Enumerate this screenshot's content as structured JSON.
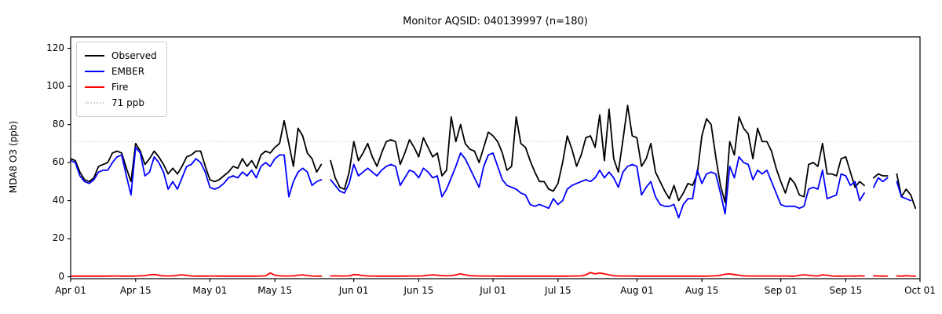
{
  "chart_data": {
    "type": "line",
    "title": "Monitor AQSID: 040139997 (n=180)",
    "xlabel": "",
    "ylabel": "MDA8 O3 (ppb)",
    "ylim": [
      -1,
      126
    ],
    "yticks": [
      0,
      20,
      40,
      60,
      80,
      100,
      120
    ],
    "xtick_labels": [
      "Apr 01",
      "Apr 15",
      "May 01",
      "May 15",
      "Jun 01",
      "Jun 15",
      "Jul 01",
      "Jul 15",
      "Aug 01",
      "Aug 15",
      "Sep 01",
      "Sep 15",
      "Oct 01"
    ],
    "xtick_day_index": [
      0,
      14,
      30,
      44,
      61,
      75,
      91,
      105,
      122,
      136,
      153,
      167,
      183
    ],
    "x_index_max": 183,
    "x_start_label": "Apr 01",
    "x_end_label": "Oct 01",
    "grid": false,
    "legend_position": "upper left",
    "threshold": {
      "label": "71 ppb",
      "value": 71,
      "color": "#d3d3d3",
      "style": "dotted"
    },
    "series": [
      {
        "name": "Observed",
        "color": "#000000",
        "values": [
          62,
          61,
          55,
          51,
          50,
          52,
          58,
          59,
          60,
          65,
          66,
          65,
          57,
          50,
          70,
          66,
          59,
          62,
          66,
          63,
          59,
          54,
          57,
          54,
          58,
          63,
          64,
          66,
          66,
          58,
          51,
          50,
          51,
          53,
          55,
          58,
          57,
          62,
          58,
          61,
          57,
          64,
          66,
          65,
          68,
          70,
          82,
          70,
          58,
          78,
          74,
          65,
          62,
          55,
          59,
          null,
          61,
          52,
          47,
          46,
          55,
          71,
          61,
          65,
          70,
          63,
          58,
          65,
          71,
          72,
          71,
          59,
          65,
          72,
          68,
          63,
          73,
          68,
          63,
          65,
          53,
          56,
          84,
          71,
          80,
          70,
          67,
          66,
          60,
          68,
          76,
          74,
          71,
          65,
          56,
          58,
          84,
          70,
          68,
          61,
          55,
          50,
          50,
          46,
          45,
          49,
          60,
          74,
          67,
          58,
          64,
          73,
          74,
          68,
          85,
          61,
          88,
          62,
          55,
          72,
          90,
          74,
          73,
          58,
          62,
          70,
          55,
          50,
          45,
          41,
          48,
          40,
          44,
          49,
          48,
          54,
          74,
          83,
          80,
          63,
          48,
          39,
          71,
          64,
          84,
          78,
          75,
          62,
          78,
          71,
          71,
          66,
          57,
          50,
          44,
          52,
          49,
          43,
          42,
          59,
          60,
          58,
          70,
          54,
          54,
          53,
          62,
          63,
          55,
          47,
          50,
          48,
          null,
          52,
          54,
          53,
          53,
          null,
          54,
          42,
          46,
          43,
          36
        ]
      },
      {
        "name": "EMBER",
        "color": "#0000ff",
        "values": [
          61,
          60,
          53,
          50,
          49,
          51,
          55,
          56,
          56,
          60,
          63,
          64,
          53,
          43,
          68,
          65,
          53,
          55,
          63,
          60,
          55,
          46,
          50,
          46,
          52,
          58,
          59,
          62,
          60,
          55,
          47,
          46,
          47,
          49,
          52,
          53,
          52,
          55,
          53,
          56,
          52,
          58,
          60,
          58,
          62,
          64,
          64,
          42,
          50,
          55,
          57,
          55,
          48,
          50,
          51,
          null,
          51,
          48,
          45,
          44,
          49,
          59,
          53,
          55,
          57,
          55,
          53,
          56,
          58,
          59,
          58,
          48,
          52,
          56,
          55,
          52,
          57,
          55,
          52,
          53,
          42,
          46,
          52,
          58,
          65,
          62,
          57,
          52,
          47,
          58,
          64,
          65,
          58,
          51,
          48,
          47,
          46,
          44,
          43,
          38,
          37,
          38,
          37,
          36,
          41,
          38,
          40,
          46,
          48,
          49,
          50,
          51,
          50,
          52,
          56,
          52,
          55,
          52,
          47,
          55,
          58,
          59,
          58,
          43,
          47,
          50,
          42,
          38,
          37,
          37,
          38,
          31,
          38,
          41,
          41,
          56,
          49,
          54,
          55,
          54,
          44,
          33,
          58,
          52,
          63,
          60,
          59,
          51,
          56,
          54,
          56,
          50,
          44,
          38,
          37,
          37,
          37,
          36,
          37,
          46,
          47,
          46,
          56,
          41,
          42,
          43,
          54,
          53,
          48,
          50,
          40,
          44,
          null,
          47,
          52,
          50,
          52,
          null,
          50,
          42,
          41,
          40,
          null
        ]
      },
      {
        "name": "Fire",
        "color": "#ff0000",
        "values": [
          0.3,
          0.3,
          0.3,
          0.3,
          0.3,
          0.3,
          0.3,
          0.3,
          0.3,
          0.4,
          0.4,
          0.3,
          0.3,
          0.3,
          0.4,
          0.5,
          0.6,
          1.0,
          1.2,
          0.8,
          0.5,
          0.4,
          0.5,
          0.8,
          1.0,
          0.7,
          0.4,
          0.3,
          0.3,
          0.3,
          0.4,
          0.4,
          0.3,
          0.3,
          0.3,
          0.3,
          0.3,
          0.3,
          0.3,
          0.3,
          0.3,
          0.4,
          0.5,
          2.0,
          0.8,
          0.5,
          0.4,
          0.4,
          0.5,
          0.8,
          1.0,
          0.6,
          0.4,
          0.3,
          0.3,
          null,
          0.4,
          0.5,
          0.4,
          0.4,
          0.5,
          1.2,
          1.0,
          0.6,
          0.4,
          0.4,
          0.3,
          0.3,
          0.3,
          0.3,
          0.3,
          0.3,
          0.3,
          0.4,
          0.4,
          0.4,
          0.5,
          0.8,
          1.0,
          0.8,
          0.6,
          0.5,
          0.6,
          1.0,
          1.5,
          1.0,
          0.6,
          0.5,
          0.4,
          0.4,
          0.4,
          0.4,
          0.3,
          0.3,
          0.3,
          0.3,
          0.3,
          0.3,
          0.3,
          0.3,
          0.3,
          0.3,
          0.3,
          0.3,
          0.3,
          0.3,
          0.3,
          0.3,
          0.4,
          0.4,
          0.5,
          1.0,
          2.2,
          1.5,
          2.0,
          1.5,
          1.0,
          0.6,
          0.4,
          0.4,
          0.4,
          0.4,
          0.3,
          0.3,
          0.3,
          0.3,
          0.3,
          0.3,
          0.3,
          0.3,
          0.3,
          0.3,
          0.3,
          0.3,
          0.3,
          0.3,
          0.3,
          0.3,
          0.4,
          0.5,
          0.8,
          1.3,
          1.5,
          1.2,
          0.8,
          0.5,
          0.4,
          0.4,
          0.4,
          0.4,
          0.4,
          0.4,
          0.4,
          0.4,
          0.4,
          0.3,
          0.3,
          0.8,
          1.0,
          0.8,
          0.5,
          0.4,
          1.0,
          0.8,
          0.4,
          0.3,
          0.3,
          0.4,
          0.4,
          0.3,
          0.5,
          0.4,
          null,
          0.5,
          0.4,
          0.3,
          0.4,
          null,
          0.5,
          0.3,
          0.6,
          0.4,
          0.3
        ]
      }
    ],
    "legend_entries": [
      {
        "label": "Observed",
        "color": "#000000",
        "style": "solid"
      },
      {
        "label": "EMBER",
        "color": "#0000ff",
        "style": "solid"
      },
      {
        "label": "Fire",
        "color": "#ff0000",
        "style": "solid"
      },
      {
        "label": "71 ppb",
        "color": "#d3d3d3",
        "style": "dotted"
      }
    ]
  }
}
